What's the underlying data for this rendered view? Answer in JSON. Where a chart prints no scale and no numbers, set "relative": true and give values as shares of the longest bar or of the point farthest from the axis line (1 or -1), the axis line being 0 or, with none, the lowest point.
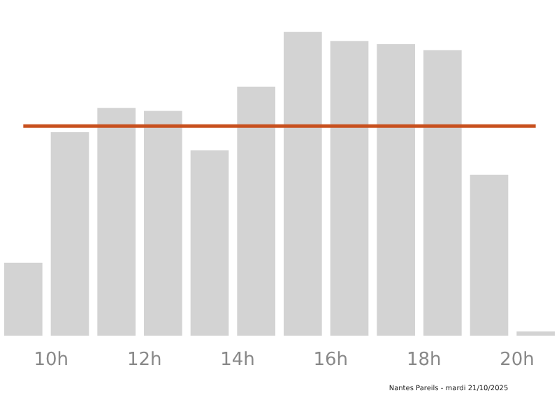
{
  "chart_data": {
    "type": "bar",
    "relative": true,
    "x": [
      9.4,
      10.4,
      11.4,
      12.4,
      13.4,
      14.4,
      15.4,
      16.4,
      17.4,
      18.4,
      19.4,
      20.4
    ],
    "values": [
      0.24,
      0.67,
      0.75,
      0.74,
      0.61,
      0.82,
      1,
      0.97,
      0.96,
      0.94,
      0.53,
      0.014
    ],
    "color": "#d3d3d3",
    "xlim": [
      8.9,
      20.9
    ],
    "xticks": [
      {
        "value": 10,
        "label": "10h"
      },
      {
        "value": 12,
        "label": "12h"
      },
      {
        "value": 14,
        "label": "14h"
      },
      {
        "value": 16,
        "label": "16h"
      },
      {
        "value": 18,
        "label": "18h"
      },
      {
        "value": 20,
        "label": "20h"
      }
    ],
    "ref_lines": [
      {
        "axis": "y",
        "value": 0.69,
        "color": "#c8501e"
      }
    ],
    "annotations": [
      "Nantes Pareils - mardi 21/10/2025"
    ]
  }
}
